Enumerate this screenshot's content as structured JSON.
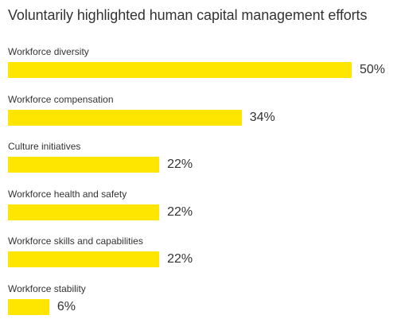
{
  "chart_data": {
    "type": "bar",
    "orientation": "horizontal",
    "title": "Voluntarily highlighted human capital management efforts",
    "categories": [
      "Workforce diversity",
      "Workforce compensation",
      "Culture initiatives",
      "Workforce health and safety",
      "Workforce skills and capabilities",
      "Workforce stability"
    ],
    "values": [
      50,
      34,
      22,
      22,
      22,
      6
    ],
    "value_labels": [
      "50%",
      "34%",
      "22%",
      "22%",
      "22%",
      "6%"
    ],
    "xlim": [
      0,
      50
    ],
    "grid": false,
    "legend": "none",
    "bar_color": "#ffe600"
  }
}
